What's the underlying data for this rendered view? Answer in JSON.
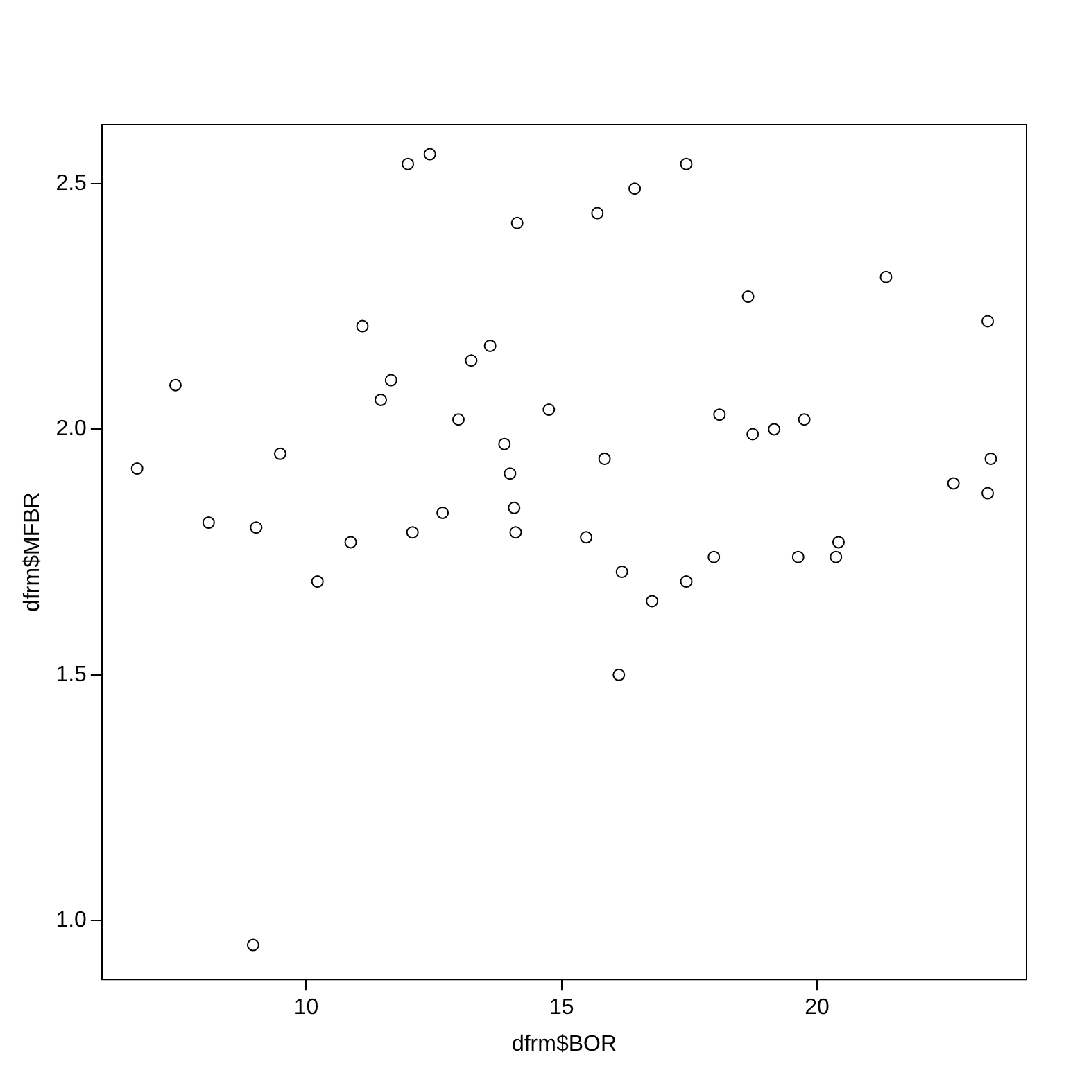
{
  "chart_data": {
    "type": "scatter",
    "xlabel": "dfrm$BOR",
    "ylabel": "dfrm$MFBR",
    "x": [
      6.69,
      7.44,
      8.09,
      8.96,
      9.02,
      9.49,
      10.22,
      10.87,
      11.1,
      11.46,
      11.66,
      11.99,
      12.08,
      12.42,
      12.67,
      12.98,
      13.23,
      13.6,
      13.88,
      13.99,
      14.07,
      14.1,
      14.13,
      14.75,
      15.48,
      15.7,
      15.84,
      16.12,
      16.18,
      16.43,
      16.77,
      17.44,
      17.44,
      17.98,
      18.09,
      18.65,
      18.74,
      19.16,
      19.63,
      19.75,
      20.37,
      20.42,
      21.35,
      22.67,
      23.34,
      23.34,
      23.4
    ],
    "series": [
      {
        "color": "#000000",
        "values": [
          1.92,
          2.09,
          1.81,
          0.95,
          1.8,
          1.95,
          1.69,
          1.77,
          2.21,
          2.06,
          2.1,
          2.54,
          1.79,
          2.56,
          1.83,
          2.02,
          2.14,
          2.17,
          1.97,
          1.91,
          1.84,
          1.79,
          2.42,
          2.04,
          1.78,
          2.44,
          1.94,
          1.5,
          1.71,
          2.49,
          1.65,
          1.69,
          2.54,
          1.74,
          2.03,
          2.27,
          1.99,
          2.0,
          1.74,
          2.02,
          1.74,
          1.77,
          2.31,
          1.89,
          2.22,
          1.87,
          1.94
        ]
      }
    ],
    "xlim": [
      6.0,
      24.1
    ],
    "ylim": [
      0.88,
      2.62
    ],
    "xticks": [
      10,
      15,
      20
    ],
    "yticks": [
      {
        "value": 1,
        "label": "1.0"
      },
      {
        "value": 1.5,
        "label": "1.5"
      },
      {
        "value": 2,
        "label": "2.0"
      },
      {
        "value": 2.5,
        "label": "2.5"
      }
    ],
    "grid": false,
    "legend": false,
    "marker": "circle"
  }
}
